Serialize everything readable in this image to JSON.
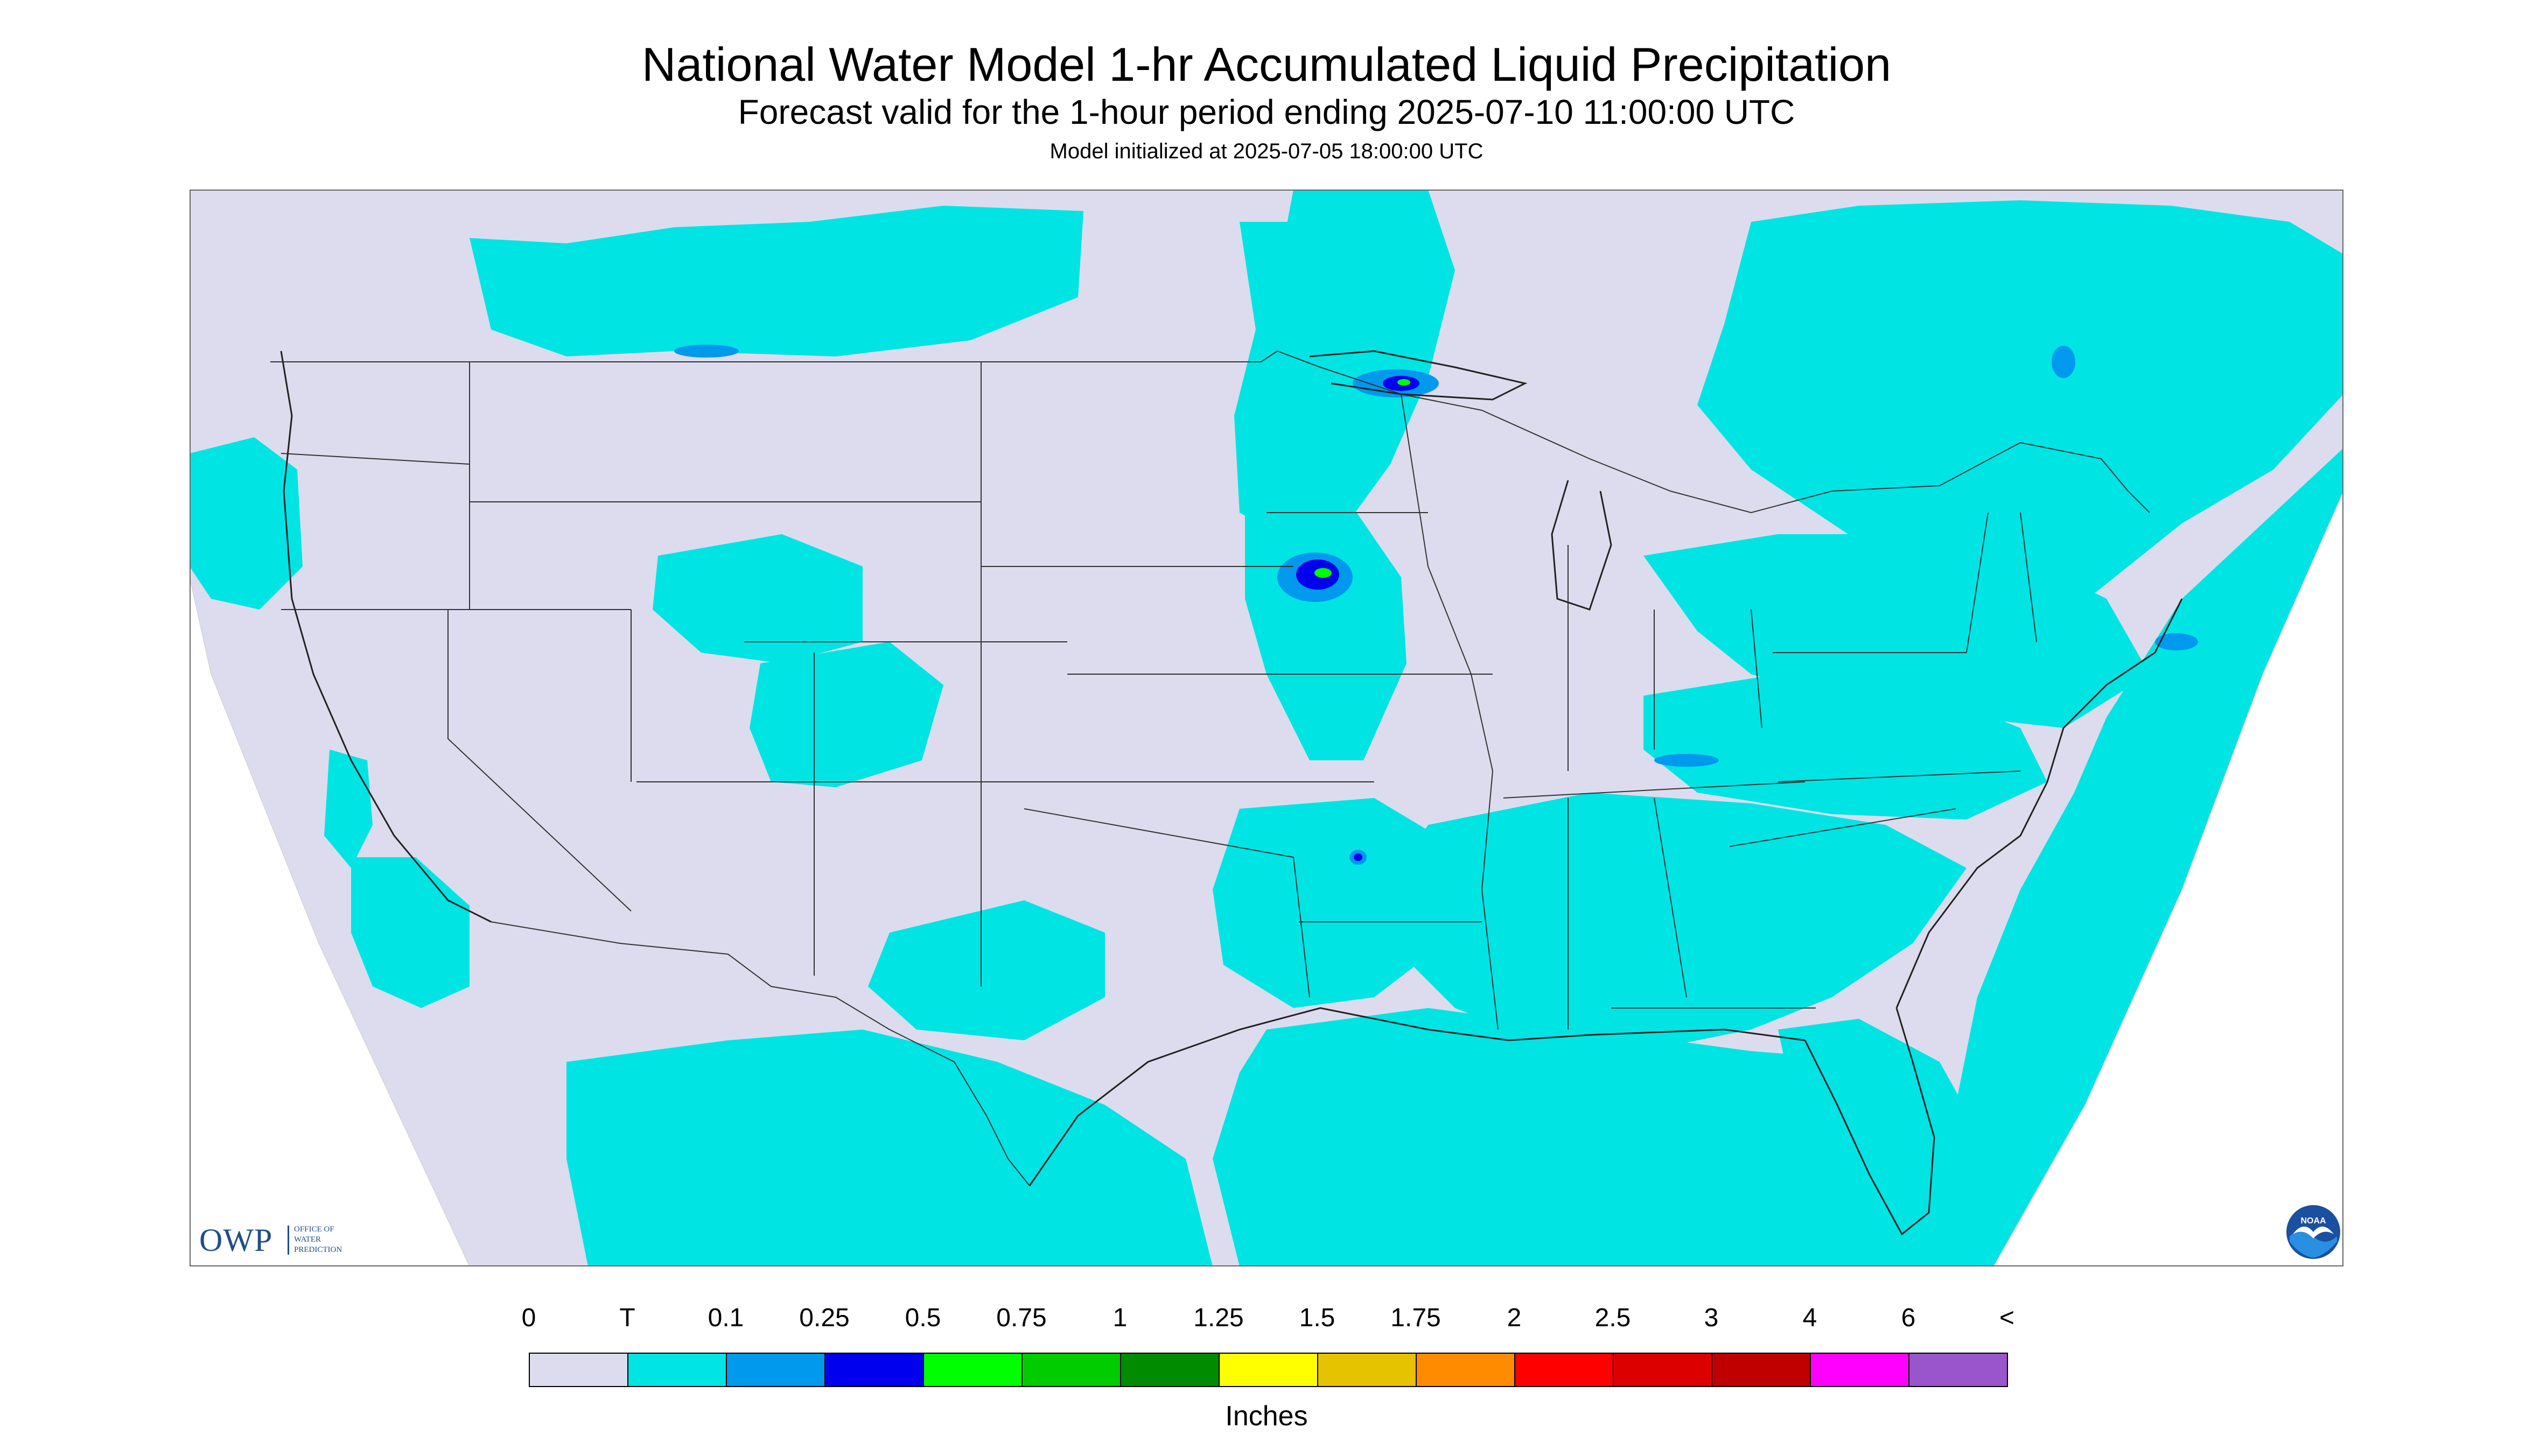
{
  "title": "National Water Model 1-hr Accumulated Liquid Precipitation",
  "subtitle": "Forecast valid for the 1-hour period ending 2025-07-10 11:00:00 UTC",
  "initialized": "Model initialized at 2025-07-05 18:00:00 UTC",
  "map": {
    "region": "CONUS",
    "background_color": "#dcdcee",
    "precip_color_trace": "#00e4e4",
    "precip_color_light": "#0099ee",
    "precip_color_moderate": "#0000ee",
    "precip_color_heavy": "#00ff00",
    "border_color": "#333333"
  },
  "logos": {
    "owp_main": "OWP",
    "owp_sub": "OFFICE OF\nWATER\nPREDICTION",
    "noaa": "NOAA"
  },
  "legend": {
    "labels": [
      "0",
      "T",
      "0.1",
      "0.25",
      "0.5",
      "0.75",
      "1",
      "1.25",
      "1.5",
      "1.75",
      "2",
      "2.5",
      "3",
      "4",
      "6",
      "<"
    ],
    "colors": [
      "#dcdcee",
      "#00e4e4",
      "#0099ee",
      "#0000ee",
      "#00ff00",
      "#00cc00",
      "#008b00",
      "#ffff00",
      "#e6c300",
      "#ff8c00",
      "#ff0000",
      "#dd0000",
      "#c00000",
      "#ff00ff",
      "#9955cc"
    ],
    "units": "Inches"
  }
}
